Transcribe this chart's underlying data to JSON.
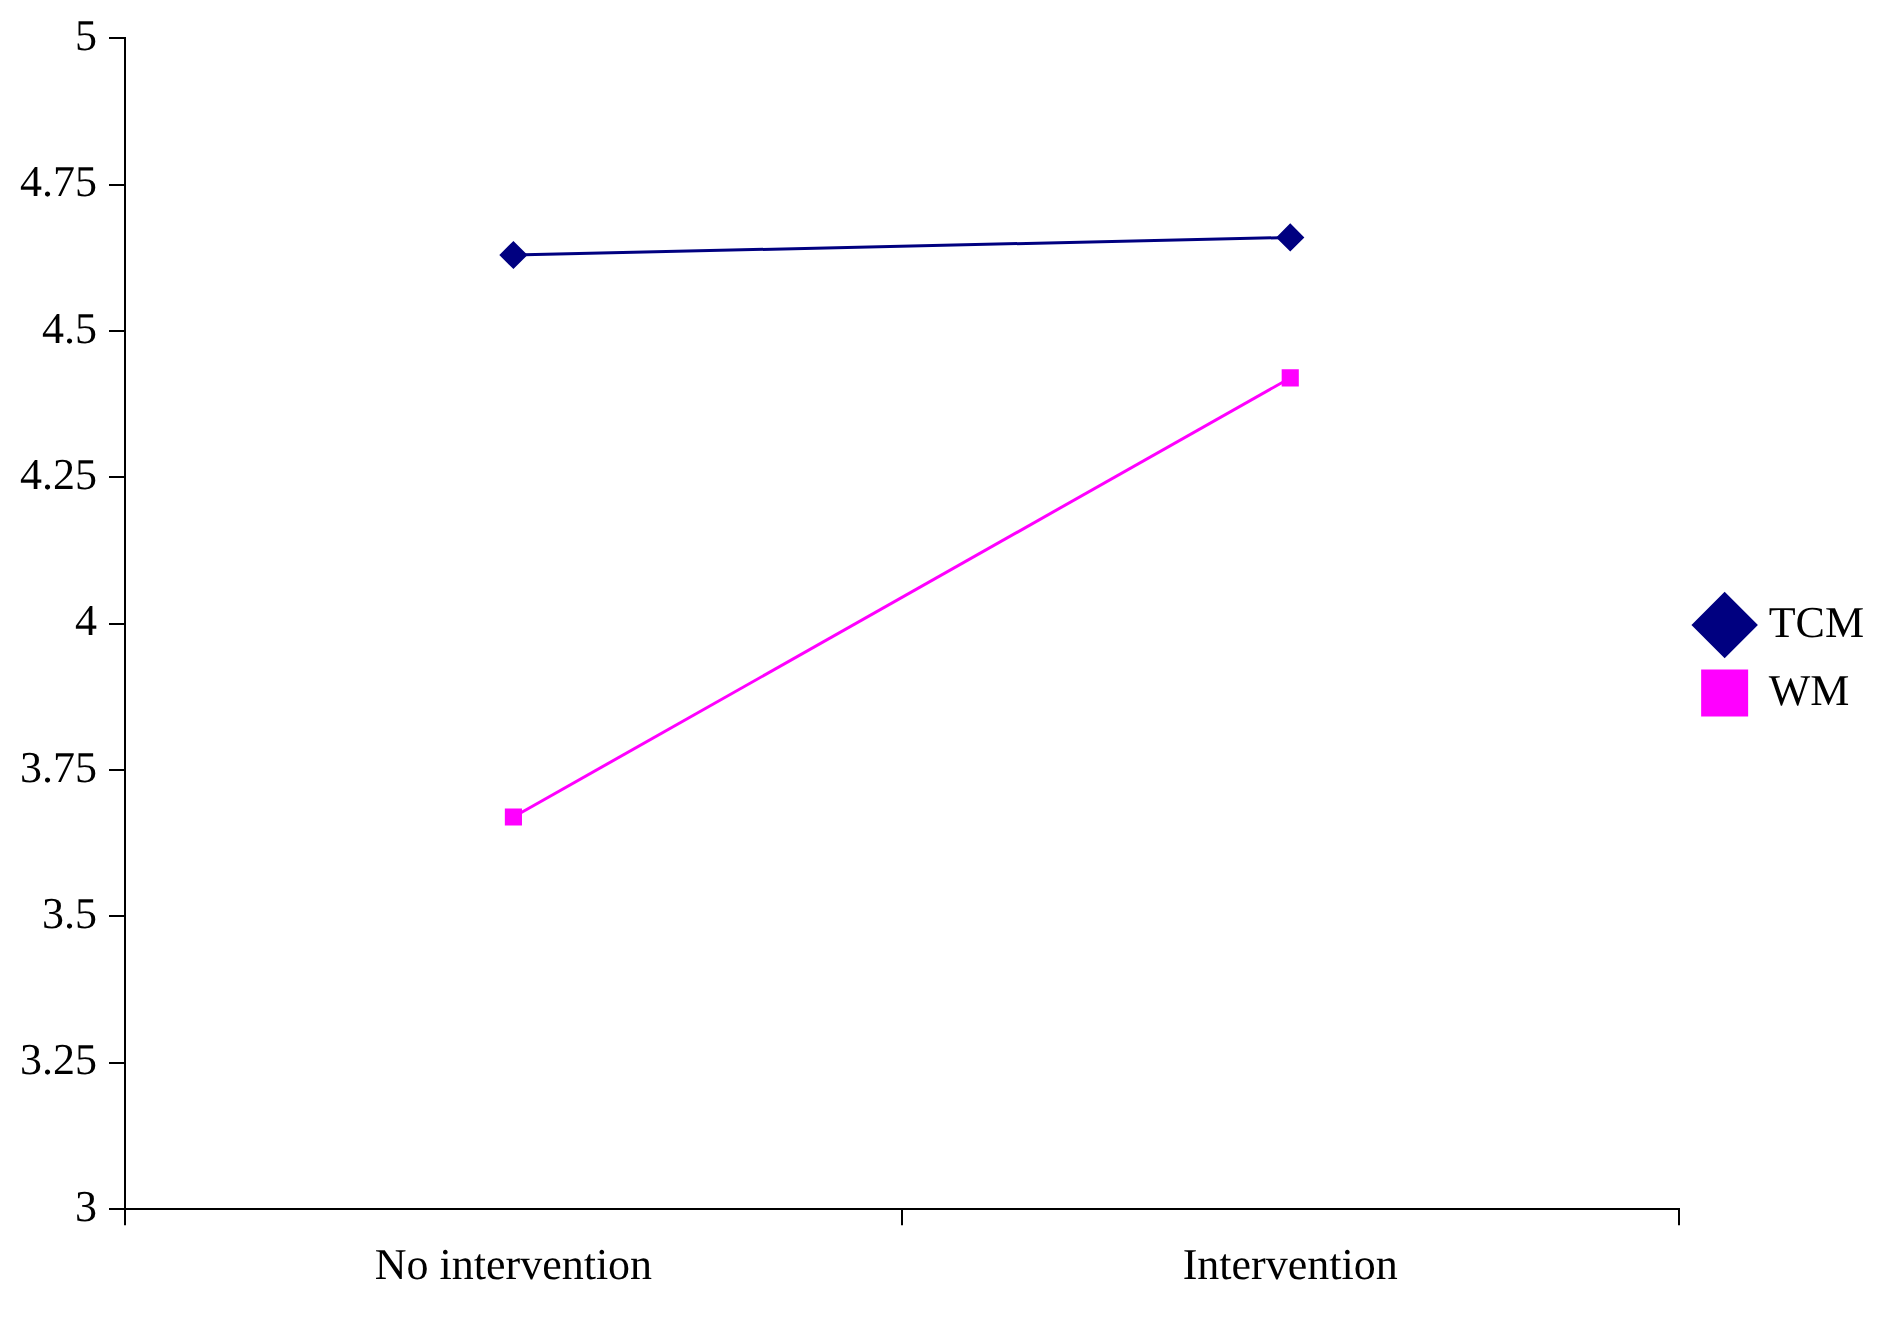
{
  "chart_data": {
    "type": "line",
    "categories": [
      "No intervention",
      "Intervention"
    ],
    "series": [
      {
        "name": "TCM",
        "color": "#000080",
        "values": [
          4.63,
          4.66
        ],
        "marker": "diamond"
      },
      {
        "name": "WM",
        "color": "#ff00ff",
        "values": [
          3.67,
          4.42
        ],
        "marker": "square"
      }
    ],
    "ylim": [
      3,
      5
    ],
    "yticks": [
      3,
      3.25,
      3.5,
      3.75,
      4,
      4.25,
      4.5,
      4.75,
      5
    ],
    "grid": false,
    "legend": "right",
    "line_style": "solid"
  }
}
